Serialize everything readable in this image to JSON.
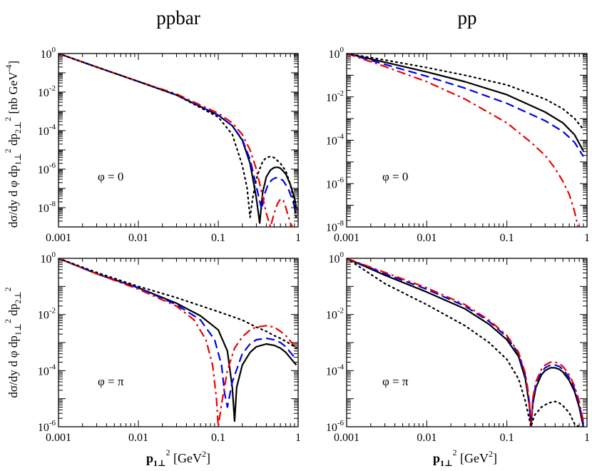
{
  "figure": {
    "column_titles": [
      "ppbar",
      "pp"
    ],
    "ylabel": {
      "main": "dσ/dy d φ dp",
      "sub1": "1⊥",
      "sup1": "2",
      "mid": " dp",
      "sub2": "2⊥",
      "sup2": "2",
      "units_open": " [nb GeV",
      "units_exp": "-4",
      "units_close": "]"
    },
    "xlabel": {
      "main": "p",
      "sub": "1⊥",
      "sup": "2",
      "units_open": "  [GeV",
      "units_exp": "2",
      "units_close": "]"
    }
  },
  "chart_data": [
    {
      "type": "line",
      "id": "ppbar-phi0",
      "annotation": "φ = 0",
      "xscale": "log",
      "yscale": "log",
      "xlim": [
        0.001,
        1
      ],
      "ylim_log10": [
        -9,
        0
      ],
      "x_ticks": [
        0.001,
        0.01,
        0.1,
        1
      ],
      "x_tick_labels": [
        "0.001",
        "0.01",
        "0.1",
        "1"
      ],
      "y_tick_labels": [
        {
          "exp": 0,
          "base": "10",
          "sup": "0"
        },
        {
          "exp": -2,
          "base": "10",
          "sup": "-2"
        },
        {
          "exp": -4,
          "base": "10",
          "sup": "-4"
        },
        {
          "exp": -6,
          "base": "10",
          "sup": "-6"
        },
        {
          "exp": -8,
          "base": "10",
          "sup": "-8"
        }
      ],
      "series": [
        {
          "name": "solid",
          "color": "#000000",
          "style": "solid",
          "x": [
            0.001,
            0.003,
            0.01,
            0.03,
            0.1,
            0.15,
            0.2,
            0.25,
            0.3,
            0.33,
            0.36,
            0.4,
            0.45,
            0.5,
            0.55,
            0.6,
            0.7,
            0.8,
            0.9,
            0.95
          ],
          "log10y": [
            0,
            -0.7,
            -1.45,
            -2.15,
            -3.2,
            -3.75,
            -4.5,
            -5.7,
            -7.5,
            -8.8,
            -7.2,
            -6.4,
            -6.05,
            -5.92,
            -5.9,
            -5.95,
            -6.25,
            -6.8,
            -7.5,
            -8.0
          ]
        },
        {
          "name": "dashed",
          "color": "#0000ee",
          "style": "dashed",
          "x": [
            0.001,
            0.003,
            0.01,
            0.03,
            0.1,
            0.15,
            0.2,
            0.25,
            0.3,
            0.35,
            0.38,
            0.42,
            0.47,
            0.52,
            0.58,
            0.65,
            0.75,
            0.85,
            0.95
          ],
          "log10y": [
            0,
            -0.7,
            -1.45,
            -2.15,
            -3.2,
            -3.75,
            -4.45,
            -5.5,
            -6.9,
            -8.1,
            -7.3,
            -6.8,
            -6.55,
            -6.45,
            -6.45,
            -6.6,
            -7.0,
            -7.6,
            -8.3
          ]
        },
        {
          "name": "dash-dot",
          "color": "#ee0000",
          "style": "dashdot",
          "x": [
            0.001,
            0.003,
            0.01,
            0.03,
            0.1,
            0.15,
            0.2,
            0.25,
            0.3,
            0.35,
            0.4,
            0.45,
            0.5,
            0.55,
            0.6,
            0.65,
            0.7,
            0.8,
            0.85
          ],
          "log10y": [
            0,
            -0.7,
            -1.45,
            -2.1,
            -3.1,
            -3.6,
            -4.2,
            -5.0,
            -6.0,
            -7.2,
            -8.3,
            -9.0,
            -8.3,
            -7.8,
            -7.55,
            -7.6,
            -8.0,
            -8.8,
            -9.0
          ]
        },
        {
          "name": "dotted",
          "color": "#000000",
          "style": "dotted",
          "x": [
            0.001,
            0.003,
            0.01,
            0.03,
            0.1,
            0.15,
            0.2,
            0.23,
            0.25,
            0.27,
            0.29,
            0.31,
            0.33,
            0.36,
            0.4,
            0.45,
            0.5,
            0.6,
            0.7,
            0.8,
            0.9,
            0.95
          ],
          "log10y": [
            0,
            -0.7,
            -1.45,
            -2.15,
            -3.3,
            -4.2,
            -5.8,
            -7.0,
            -8.5,
            -7.5,
            -6.8,
            -6.3,
            -6.0,
            -5.6,
            -5.4,
            -5.35,
            -5.4,
            -5.7,
            -6.1,
            -6.8,
            -7.8,
            -8.6
          ]
        }
      ]
    },
    {
      "type": "line",
      "id": "pp-phi0",
      "annotation": "φ = 0",
      "xscale": "log",
      "yscale": "log",
      "xlim": [
        0.001,
        1
      ],
      "ylim_log10": [
        -8,
        0
      ],
      "x_ticks": [
        0.001,
        0.01,
        0.1,
        1
      ],
      "x_tick_labels": [
        "0.001",
        "0.01",
        "0.1",
        "1"
      ],
      "y_tick_labels": [
        {
          "exp": 0,
          "base": "10",
          "sup": "0"
        },
        {
          "exp": -2,
          "base": "10",
          "sup": "-2"
        },
        {
          "exp": -4,
          "base": "10",
          "sup": "-4"
        },
        {
          "exp": -6,
          "base": "10",
          "sup": "-6"
        },
        {
          "exp": -8,
          "base": "10",
          "sup": "-8"
        }
      ],
      "series": [
        {
          "name": "solid",
          "color": "#000000",
          "style": "solid",
          "x": [
            0.001,
            0.003,
            0.01,
            0.03,
            0.1,
            0.3,
            0.5,
            0.7,
            0.9
          ],
          "log10y": [
            0,
            -0.4,
            -0.85,
            -1.3,
            -1.9,
            -2.7,
            -3.2,
            -3.75,
            -4.5
          ]
        },
        {
          "name": "dashed",
          "color": "#0000ee",
          "style": "dashed",
          "x": [
            0.001,
            0.003,
            0.01,
            0.03,
            0.1,
            0.3,
            0.5,
            0.7,
            0.9
          ],
          "log10y": [
            0,
            -0.5,
            -1.05,
            -1.6,
            -2.3,
            -3.1,
            -3.6,
            -4.1,
            -4.75
          ]
        },
        {
          "name": "dash-dot",
          "color": "#ee0000",
          "style": "dashdot",
          "x": [
            0.001,
            0.003,
            0.01,
            0.03,
            0.1,
            0.2,
            0.3,
            0.4,
            0.5,
            0.6,
            0.7,
            0.75,
            0.8
          ],
          "log10y": [
            0,
            -0.6,
            -1.3,
            -2.1,
            -3.2,
            -4.1,
            -4.7,
            -5.3,
            -5.9,
            -6.5,
            -7.3,
            -7.8,
            -8.3
          ]
        },
        {
          "name": "dotted",
          "color": "#000000",
          "style": "dotted",
          "x": [
            0.001,
            0.003,
            0.01,
            0.03,
            0.1,
            0.3,
            0.5,
            0.7,
            0.9
          ],
          "log10y": [
            0,
            -0.3,
            -0.65,
            -1.0,
            -1.45,
            -2.1,
            -2.55,
            -3.0,
            -3.5
          ]
        }
      ]
    },
    {
      "type": "line",
      "id": "ppbar-phipi",
      "annotation": "φ = π",
      "xscale": "log",
      "yscale": "log",
      "xlim": [
        0.001,
        1
      ],
      "ylim_log10": [
        -6,
        0
      ],
      "x_ticks": [
        0.001,
        0.01,
        0.1,
        1
      ],
      "x_tick_labels": [
        "0.001",
        "0.01",
        "0.1",
        "1"
      ],
      "y_tick_labels": [
        {
          "exp": 0,
          "base": "10",
          "sup": "0"
        },
        {
          "exp": -2,
          "base": "10",
          "sup": "-2"
        },
        {
          "exp": -4,
          "base": "10",
          "sup": "-4"
        },
        {
          "exp": -6,
          "base": "10",
          "sup": "-6"
        }
      ],
      "series": [
        {
          "name": "solid",
          "color": "#000000",
          "style": "solid",
          "x": [
            0.001,
            0.003,
            0.01,
            0.03,
            0.06,
            0.1,
            0.13,
            0.15,
            0.16,
            0.17,
            0.2,
            0.25,
            0.3,
            0.4,
            0.5,
            0.6,
            0.7,
            0.8,
            0.95
          ],
          "log10y": [
            0,
            -0.55,
            -1.05,
            -1.6,
            -2.05,
            -2.55,
            -3.3,
            -4.6,
            -5.8,
            -4.6,
            -3.8,
            -3.35,
            -3.15,
            -3.05,
            -3.1,
            -3.2,
            -3.35,
            -3.55,
            -3.8
          ]
        },
        {
          "name": "dashed",
          "color": "#0000ee",
          "style": "dashed",
          "x": [
            0.001,
            0.003,
            0.01,
            0.03,
            0.06,
            0.09,
            0.11,
            0.12,
            0.13,
            0.15,
            0.2,
            0.25,
            0.3,
            0.4,
            0.5,
            0.6,
            0.7,
            0.8,
            0.95
          ],
          "log10y": [
            0,
            -0.55,
            -1.05,
            -1.65,
            -2.2,
            -2.9,
            -3.8,
            -4.8,
            -5.3,
            -4.4,
            -3.4,
            -3.05,
            -2.9,
            -2.85,
            -2.9,
            -3.0,
            -3.15,
            -3.35,
            -3.6
          ]
        },
        {
          "name": "dash-dot",
          "color": "#ee0000",
          "style": "dashdot",
          "x": [
            0.001,
            0.003,
            0.01,
            0.03,
            0.05,
            0.07,
            0.085,
            0.095,
            0.1,
            0.11,
            0.13,
            0.16,
            0.2,
            0.25,
            0.3,
            0.4,
            0.5,
            0.6,
            0.7,
            0.8,
            0.95
          ],
          "log10y": [
            0,
            -0.55,
            -1.1,
            -1.7,
            -2.2,
            -2.9,
            -3.8,
            -5.0,
            -6.0,
            -5.2,
            -4.0,
            -3.2,
            -2.8,
            -2.55,
            -2.45,
            -2.4,
            -2.45,
            -2.6,
            -2.75,
            -2.95,
            -3.2
          ]
        },
        {
          "name": "dotted",
          "color": "#000000",
          "style": "dotted",
          "x": [
            0.001,
            0.003,
            0.01,
            0.03,
            0.1,
            0.2,
            0.3,
            0.4,
            0.5,
            0.6,
            0.8,
            0.95
          ],
          "log10y": [
            0,
            -0.5,
            -1.0,
            -1.4,
            -1.9,
            -2.2,
            -2.45,
            -2.6,
            -2.75,
            -2.85,
            -3.05,
            -3.2
          ]
        }
      ]
    },
    {
      "type": "line",
      "id": "pp-phipi",
      "annotation": "φ = π",
      "xscale": "log",
      "yscale": "log",
      "xlim": [
        0.001,
        1
      ],
      "ylim_log10": [
        -6,
        0
      ],
      "x_ticks": [
        0.001,
        0.01,
        0.1,
        1
      ],
      "x_tick_labels": [
        "0.001",
        "0.01",
        "0.1",
        "1"
      ],
      "y_tick_labels": [
        {
          "exp": 0,
          "base": "10",
          "sup": "0"
        },
        {
          "exp": -2,
          "base": "10",
          "sup": "-2"
        },
        {
          "exp": -4,
          "base": "10",
          "sup": "-4"
        },
        {
          "exp": -6,
          "base": "10",
          "sup": "-6"
        }
      ],
      "series": [
        {
          "name": "solid",
          "color": "#000000",
          "style": "solid",
          "x": [
            0.001,
            0.003,
            0.01,
            0.03,
            0.06,
            0.1,
            0.14,
            0.17,
            0.19,
            0.2,
            0.21,
            0.23,
            0.27,
            0.3,
            0.35,
            0.4,
            0.45,
            0.5,
            0.6,
            0.7,
            0.8,
            0.9
          ],
          "log10y": [
            0,
            -0.6,
            -1.2,
            -1.8,
            -2.35,
            -2.9,
            -3.5,
            -4.3,
            -5.2,
            -6.0,
            -5.2,
            -4.6,
            -4.15,
            -4.0,
            -3.9,
            -3.9,
            -3.95,
            -4.05,
            -4.35,
            -4.75,
            -5.3,
            -6.0
          ]
        },
        {
          "name": "dashed",
          "color": "#0000ee",
          "style": "dashed",
          "x": [
            0.001,
            0.003,
            0.01,
            0.03,
            0.06,
            0.1,
            0.14,
            0.17,
            0.19,
            0.2,
            0.21,
            0.23,
            0.27,
            0.3,
            0.35,
            0.4,
            0.45,
            0.5,
            0.6,
            0.7,
            0.8,
            0.9
          ],
          "log10y": [
            0,
            -0.55,
            -1.1,
            -1.7,
            -2.25,
            -2.8,
            -3.4,
            -4.2,
            -5.1,
            -6.0,
            -5.1,
            -4.5,
            -4.05,
            -3.9,
            -3.8,
            -3.8,
            -3.85,
            -3.95,
            -4.25,
            -4.65,
            -5.2,
            -5.9
          ]
        },
        {
          "name": "dash-dot",
          "color": "#ee0000",
          "style": "dashdot",
          "x": [
            0.001,
            0.003,
            0.01,
            0.03,
            0.06,
            0.1,
            0.14,
            0.17,
            0.19,
            0.2,
            0.21,
            0.23,
            0.27,
            0.3,
            0.35,
            0.4,
            0.45,
            0.5,
            0.6,
            0.7,
            0.8,
            0.9
          ],
          "log10y": [
            0,
            -0.5,
            -1.05,
            -1.65,
            -2.2,
            -2.75,
            -3.35,
            -4.1,
            -5.0,
            -6.0,
            -5.0,
            -4.4,
            -3.95,
            -3.8,
            -3.7,
            -3.7,
            -3.75,
            -3.85,
            -4.15,
            -4.55,
            -5.1,
            -5.8
          ]
        },
        {
          "name": "dotted",
          "color": "#000000",
          "style": "dotted",
          "x": [
            0.001,
            0.003,
            0.01,
            0.03,
            0.06,
            0.1,
            0.14,
            0.17,
            0.2,
            0.22,
            0.27,
            0.33,
            0.4,
            0.45,
            0.5,
            0.6,
            0.7,
            0.8,
            0.9
          ],
          "log10y": [
            0,
            -0.9,
            -1.65,
            -2.4,
            -3.0,
            -3.6,
            -4.3,
            -5.1,
            -6.0,
            -5.6,
            -5.3,
            -5.15,
            -5.1,
            -5.15,
            -5.25,
            -5.5,
            -5.9,
            -6.0,
            -6.0
          ]
        }
      ]
    }
  ]
}
